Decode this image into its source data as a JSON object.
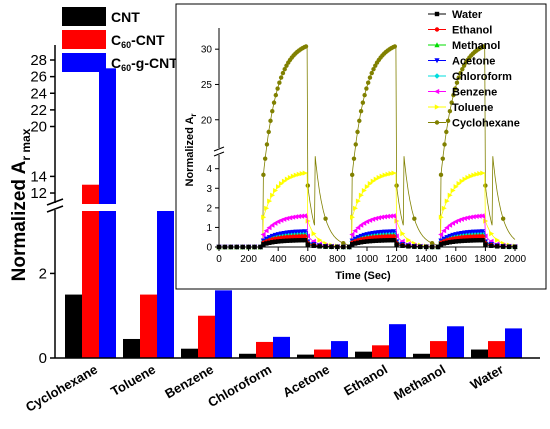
{
  "chart_data": [
    {
      "type": "bar",
      "categories": [
        "Cyclohexane",
        "Toluene",
        "Benzene",
        "Chloroform",
        "Acetone",
        "Ethanol",
        "Methanol",
        "Water"
      ],
      "series": [
        {
          "name": "CNT",
          "color": "#000000",
          "values": [
            1.5,
            0.45,
            0.22,
            0.1,
            0.08,
            0.15,
            0.1,
            0.2
          ]
        },
        {
          "name": "C60-CNT",
          "color": "#ff0000",
          "values": [
            13,
            1.5,
            1.0,
            0.38,
            0.2,
            0.3,
            0.4,
            0.4
          ]
        },
        {
          "name": "C60-g-CNT",
          "color": "#0000ff",
          "values": [
            27,
            3.5,
            1.6,
            0.5,
            0.4,
            0.8,
            0.75,
            0.7
          ]
        }
      ],
      "legend_labels": {
        "cnt": "CNT",
        "c60_pre": "C",
        "c60_sub": "60",
        "c60cnt_post": "-CNT",
        "c60gcnt_post": "-g-CNT"
      },
      "ylabel": {
        "main": "Normalized A",
        "sub": "r max"
      },
      "axis_break": true,
      "lower_ylim": [
        0,
        3.5
      ],
      "lower_ticks": [
        "0",
        "2"
      ],
      "upper_ylim": [
        10.8,
        28
      ],
      "upper_ticks": [
        "12",
        "14",
        "20",
        "22",
        "24",
        "26",
        "28"
      ],
      "legend_position": "top-left"
    },
    {
      "type": "line",
      "series": [
        {
          "name": "Water",
          "color": "#000000",
          "marker": "square",
          "peak": 0.35
        },
        {
          "name": "Ethanol",
          "color": "#ff0000",
          "marker": "circle",
          "peak": 0.55
        },
        {
          "name": "Methanol",
          "color": "#00dd00",
          "marker": "triangle-up",
          "peak": 0.6
        },
        {
          "name": "Acetone",
          "color": "#0000ff",
          "marker": "triangle-down",
          "peak": 0.8
        },
        {
          "name": "Chloroform",
          "color": "#00dddd",
          "marker": "diamond",
          "peak": 0.7
        },
        {
          "name": "Benzene",
          "color": "#ff00ff",
          "marker": "triangle-left",
          "peak": 1.6
        },
        {
          "name": "Toluene",
          "color": "#ffff00",
          "marker": "triangle-right",
          "peak": 3.8
        },
        {
          "name": "Cyclohexane",
          "color": "#808000",
          "marker": "circle",
          "peak": 30.5
        }
      ],
      "cycles": [
        {
          "on": 300,
          "off": 600
        },
        {
          "on": 900,
          "off": 1200
        },
        {
          "on": 1500,
          "off": 1800
        }
      ],
      "xlabel": "Time (Sec)",
      "ylabel": {
        "main": "Normalized A",
        "sub": "r"
      },
      "xlim": [
        0,
        2000
      ],
      "x_ticks": [
        "0",
        "200",
        "400",
        "600",
        "800",
        "1000",
        "1200",
        "1400",
        "1600",
        "1800",
        "2000"
      ],
      "axis_break": true,
      "lower_ylim": [
        0,
        4.7
      ],
      "lower_ticks": [
        "0",
        "1",
        "2",
        "3",
        "4"
      ],
      "upper_ylim": [
        16,
        33
      ],
      "upper_ticks": [
        "20",
        "25",
        "30"
      ],
      "legend_position": "top-right"
    }
  ]
}
